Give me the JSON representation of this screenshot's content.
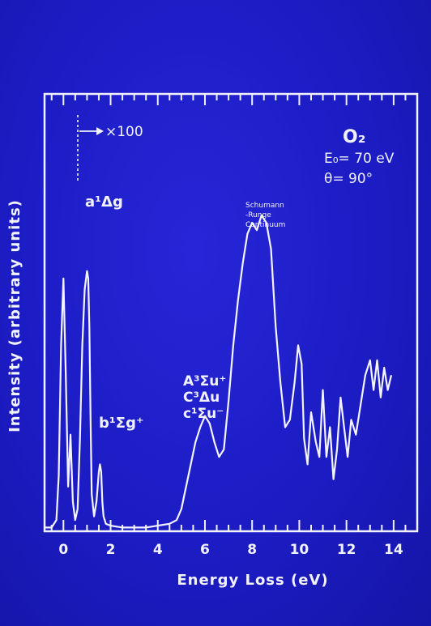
{
  "chart_data": {
    "type": "line",
    "xlabel": "Energy Loss (eV)",
    "ylabel": "Intensity (arbitrary units)",
    "xlim": [
      -0.8,
      15
    ],
    "ylim": [
      0,
      100
    ],
    "x_ticks": [
      "0",
      "2",
      "4",
      "6",
      "8",
      "10",
      "12",
      "14"
    ],
    "x_tick_values": [
      0,
      2,
      4,
      6,
      8,
      10,
      12,
      14
    ],
    "grid": false,
    "annotations": {
      "gas": "O₂",
      "energy": "E₀= 70 eV",
      "angle": "θ= 90°",
      "scale_marker": "×100",
      "a_state": "a¹Δg",
      "b_state": "b¹Σg⁺",
      "A_state": "A³Σu⁺",
      "C_state": "C³Δu",
      "c_state": "c¹Σu⁻",
      "schumann_1": "Schumann",
      "schumann_2": "-Runge",
      "schumann_3": "Continuum"
    },
    "series": [
      {
        "x": [
          -0.8,
          -0.5,
          -0.3,
          -0.2,
          -0.1,
          0.0,
          0.1,
          0.2,
          0.3,
          0.4,
          0.5,
          0.6,
          0.7,
          0.8,
          0.9,
          1.0,
          1.05,
          1.1,
          1.15,
          1.2,
          1.3,
          1.4,
          1.5,
          1.55,
          1.6,
          1.65,
          1.7,
          1.8,
          2.0,
          2.5,
          3.0,
          3.5,
          4.0,
          4.5,
          4.8,
          5.0,
          5.2,
          5.4,
          5.6,
          5.8,
          6.0,
          6.2,
          6.4,
          6.6,
          6.8,
          7.0,
          7.2,
          7.4,
          7.6,
          7.8,
          8.0,
          8.2,
          8.4,
          8.6,
          8.8,
          9.0,
          9.2,
          9.4,
          9.6,
          9.8,
          9.95,
          10.1,
          10.2,
          10.35,
          10.5,
          10.7,
          10.85,
          11.0,
          11.15,
          11.3,
          11.45,
          11.6,
          11.75,
          11.9,
          12.05,
          12.2,
          12.4,
          12.6,
          12.8,
          13.0,
          13.15,
          13.3,
          13.45,
          13.6,
          13.75,
          13.9
        ],
        "y": [
          1,
          1,
          3,
          15,
          50,
          68,
          42,
          12,
          26,
          8,
          3,
          6,
          25,
          50,
          65,
          70,
          68,
          55,
          30,
          10,
          4,
          8,
          16,
          18,
          16,
          8,
          4,
          2,
          1.5,
          1,
          1,
          1,
          1.5,
          2,
          3,
          6,
          12,
          18,
          24,
          28,
          31,
          29,
          24,
          20,
          22,
          35,
          50,
          62,
          72,
          80,
          83,
          81,
          85,
          83,
          76,
          55,
          40,
          28,
          30,
          40,
          50,
          45,
          25,
          18,
          32,
          24,
          20,
          38,
          20,
          28,
          14,
          22,
          36,
          28,
          20,
          30,
          26,
          34,
          42,
          46,
          38,
          46,
          36,
          44,
          38,
          42
        ]
      }
    ]
  }
}
